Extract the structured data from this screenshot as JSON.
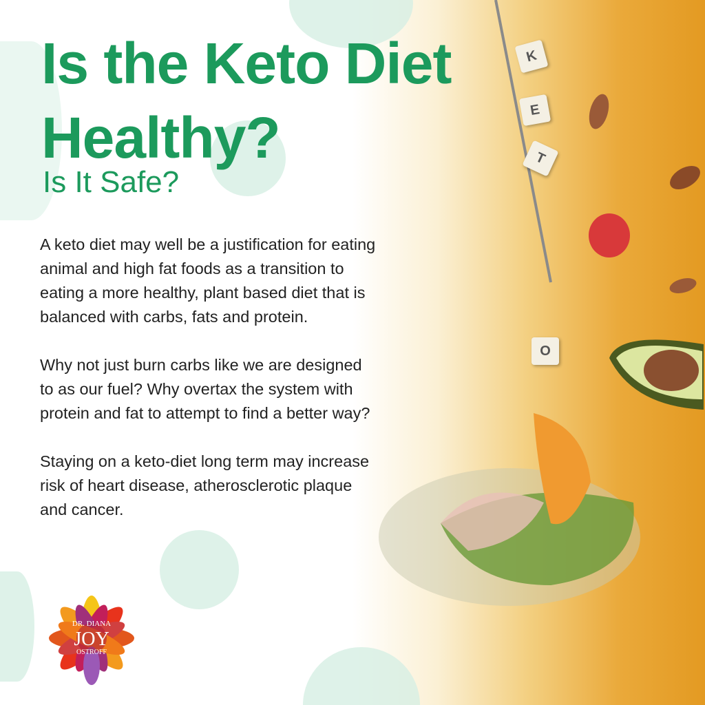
{
  "title": "Is the Keto Diet Healthy?",
  "title_line1": "Is the Keto Diet",
  "title_line2": "Healthy?",
  "subtitle": "Is It Safe?",
  "paragraphs": [
    "A keto diet may well be a justification for eating animal and high fat foods as a transition to eating a more healthy, plant based diet that is balanced with carbs, fats and protein.",
    "Why not just burn carbs like we are designed to as our fuel? Why overtax the system with protein and fat to attempt to find a better way?",
    "Staying on a keto-diet long term may increase risk of heart disease, atherosclerotic plaque and cancer."
  ],
  "tiles": [
    "K",
    "E",
    "T",
    "O"
  ],
  "logo": {
    "line1": "DR. DIANA",
    "line2": "JOY",
    "line3": "OSTROFF"
  },
  "colors": {
    "title": "#1c9a5c",
    "text": "#222222",
    "accent": "#e39a22",
    "circle": "#d6efe3"
  }
}
